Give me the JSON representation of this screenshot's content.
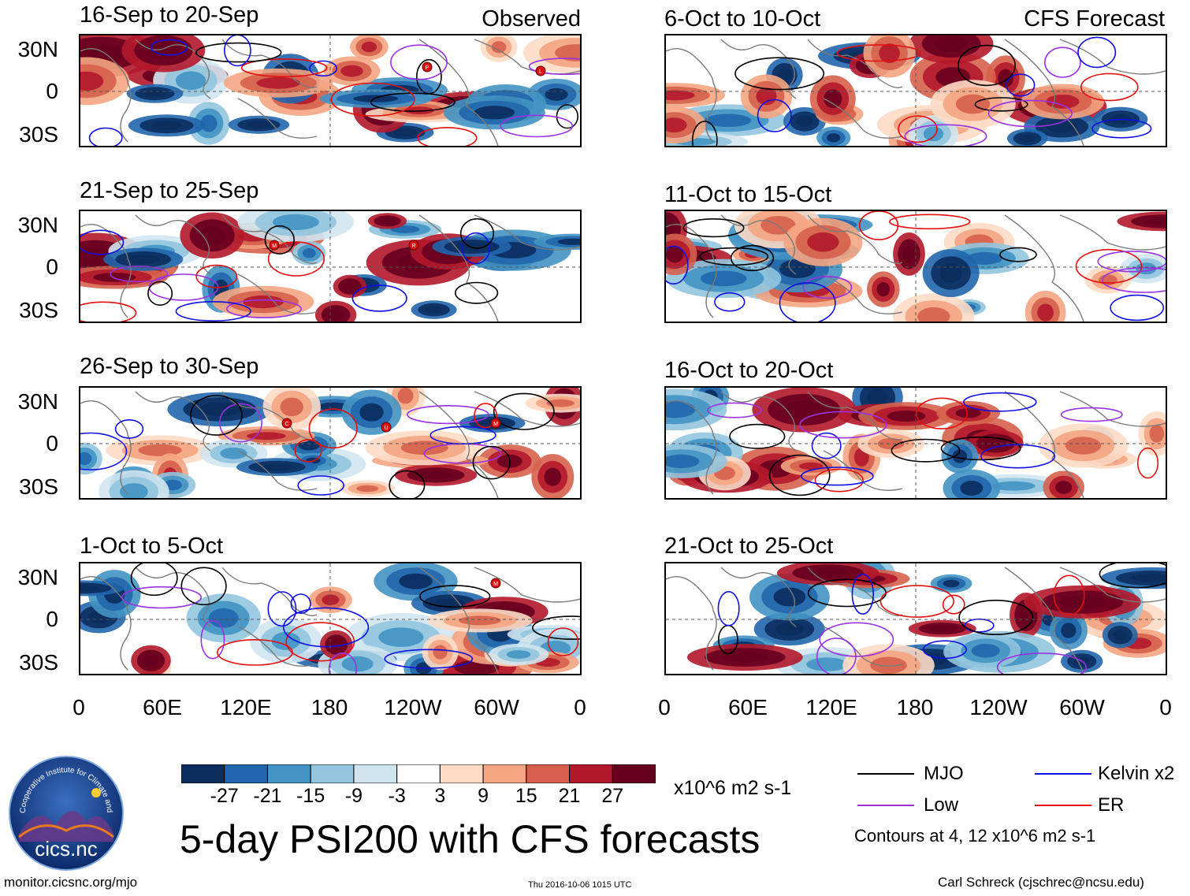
{
  "observed_label": "Observed",
  "forecast_label": "CFS Forecast",
  "main_title": "5-day PSI200 with CFS forecasts",
  "website": "monitor.cicsnc.org/mjo",
  "timestamp": "Thu 2016-10-06 1015 UTC",
  "author": "Carl Schreck (cjschrec@ncsu.edu)",
  "units": "x10^6 m2 s-1",
  "contours_note": "Contours at 4, 12 x10^6 m2 s-1",
  "logo": {
    "org": "Cooperative Institute for Climate and Satellites",
    "short": "cics.nc"
  },
  "lat_labels": [
    "30N",
    "0",
    "30S"
  ],
  "lon_labels": [
    "0",
    "60E",
    "120E",
    "180",
    "120W",
    "60W",
    "0"
  ],
  "colorbar": {
    "ticks": [
      "-27",
      "-21",
      "-15",
      "-9",
      "-3",
      "3",
      "9",
      "15",
      "21",
      "27"
    ],
    "colors": [
      "#0b2d5e",
      "#2166ac",
      "#4393c3",
      "#92c5de",
      "#d1e5f0",
      "#ffffff",
      "#fddbc7",
      "#f4a582",
      "#d6604d",
      "#b2182b",
      "#67001f"
    ]
  },
  "legend": [
    {
      "label": "MJO",
      "color": "#000000"
    },
    {
      "label": "Kelvin x2",
      "color": "#1010e0"
    },
    {
      "label": "Low",
      "color": "#9933e0"
    },
    {
      "label": "ER",
      "color": "#e01010"
    }
  ],
  "observed_panels": [
    {
      "title": "16-Sep to 20-Sep",
      "storms": [
        "P",
        "L"
      ]
    },
    {
      "title": "21-Sep to 25-Sep",
      "storms": [
        "M",
        "R"
      ]
    },
    {
      "title": "26-Sep to 30-Sep",
      "storms": [
        "C",
        "U",
        "M"
      ]
    },
    {
      "title": "1-Oct to 5-Oct",
      "storms": [
        "M"
      ]
    }
  ],
  "forecast_panels": [
    {
      "title": "6-Oct to 10-Oct"
    },
    {
      "title": "11-Oct to 15-Oct"
    },
    {
      "title": "16-Oct to 20-Oct"
    },
    {
      "title": "21-Oct to 25-Oct"
    }
  ]
}
